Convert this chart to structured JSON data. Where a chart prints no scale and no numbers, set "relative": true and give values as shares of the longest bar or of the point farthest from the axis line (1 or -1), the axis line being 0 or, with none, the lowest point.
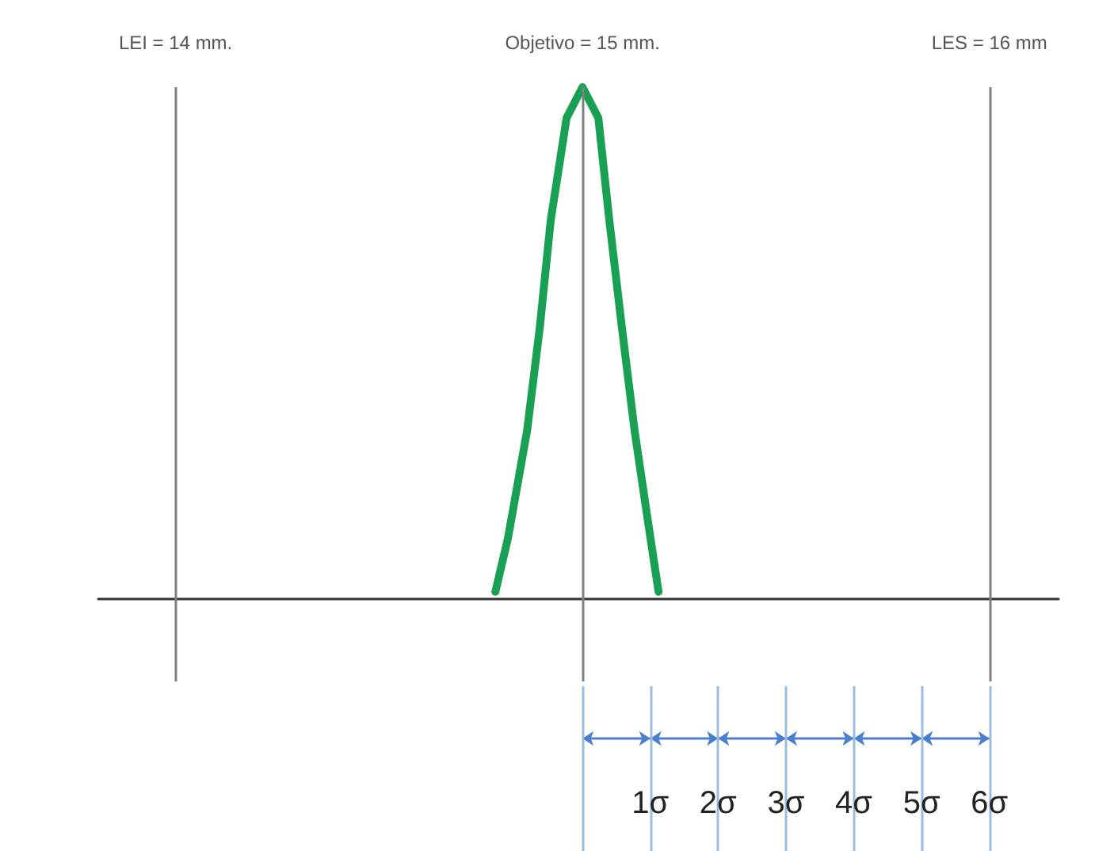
{
  "chart_data": {
    "type": "line",
    "relative": true,
    "xlim": [
      13.81,
      16.17
    ],
    "x2lim": [
      -7.14,
      7.02
    ],
    "marker": "none",
    "line_style": "solid",
    "xticks": [
      {
        "value": 14,
        "label": "LEI = 14 mm."
      },
      {
        "value": 15,
        "label": "Objetivo = 15 mm."
      },
      {
        "value": 16,
        "label": "LES = 16 mm"
      }
    ],
    "x2ticks": [
      {
        "value": 0,
        "label": null
      },
      {
        "value": 1,
        "label": "1σ"
      },
      {
        "value": 2,
        "label": "2σ"
      },
      {
        "value": 3,
        "label": "3σ"
      },
      {
        "value": 4,
        "label": "4σ"
      },
      {
        "value": 5,
        "label": "5σ"
      },
      {
        "value": 6,
        "label": "6σ"
      }
    ],
    "series": [
      {
        "color": "#1aa055",
        "x": [
          14.786,
          14.817,
          14.864,
          14.895,
          14.922,
          14.961,
          15,
          15.039,
          15.066,
          15.097,
          15.128,
          15.167,
          15.187
        ],
        "values": [
          0.015,
          0.12,
          0.33,
          0.53,
          0.74,
          0.94,
          1,
          0.94,
          0.74,
          0.53,
          0.33,
          0.12,
          0.015
        ]
      }
    ],
    "ref_lines": [
      {
        "axis": "x",
        "value": 14,
        "color": "#808080"
      },
      {
        "axis": "x",
        "value": 15,
        "color": "#808080"
      },
      {
        "axis": "x",
        "value": 16,
        "color": "#808080"
      }
    ]
  }
}
